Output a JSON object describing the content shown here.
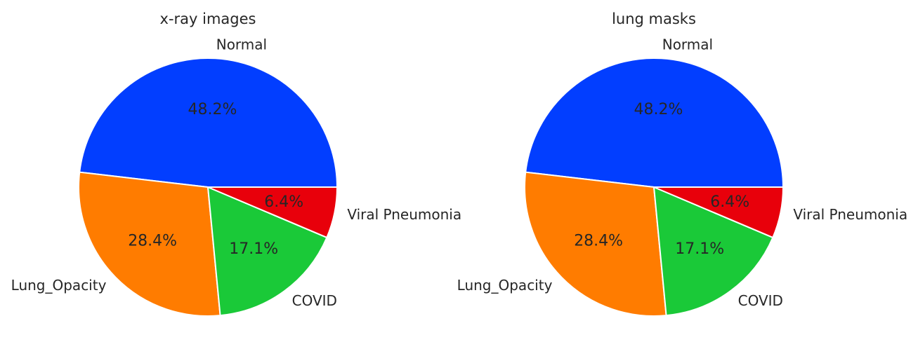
{
  "chart_data": [
    {
      "type": "pie",
      "title": "x-ray images",
      "categories": [
        "Normal",
        "Lung_Opacity",
        "COVID",
        "Viral Pneumonia"
      ],
      "values": [
        48.2,
        28.4,
        17.1,
        6.4
      ],
      "value_labels": [
        "48.2%",
        "28.4%",
        "17.1%",
        "6.4%"
      ],
      "colors": [
        "#023eff",
        "#ff7c00",
        "#1ac938",
        "#e8000b"
      ],
      "start_angle_deg": 0,
      "direction": "counterclockwise"
    },
    {
      "type": "pie",
      "title": "lung masks",
      "categories": [
        "Normal",
        "Lung_Opacity",
        "COVID",
        "Viral Pneumonia"
      ],
      "values": [
        48.2,
        28.4,
        17.1,
        6.4
      ],
      "value_labels": [
        "48.2%",
        "28.4%",
        "17.1%",
        "6.4%"
      ],
      "colors": [
        "#023eff",
        "#ff7c00",
        "#1ac938",
        "#e8000b"
      ],
      "start_angle_deg": 0,
      "direction": "counterclockwise"
    }
  ]
}
